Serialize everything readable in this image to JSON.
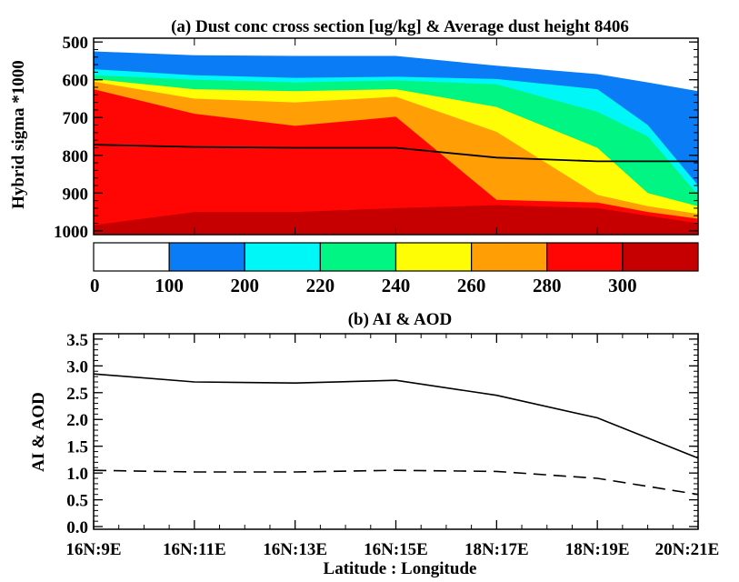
{
  "chart_data": [
    {
      "type": "area",
      "title": "(a) Dust conc cross section [ug/kg] & Average dust height 8406",
      "ylabel": "Hybrid sigma *1000",
      "xlabel": "",
      "y_ticks": [
        "500",
        "600",
        "700",
        "800",
        "900",
        "1000"
      ],
      "ylim": [
        1010,
        490
      ],
      "y_inverted": true,
      "x": [
        0,
        1,
        2,
        3,
        4,
        5,
        6
      ],
      "xlim": [
        0,
        6
      ],
      "colorbar": {
        "levels": [
          0,
          100,
          200,
          220,
          240,
          260,
          280,
          300
        ],
        "tick_labels": [
          "0",
          "100",
          "200",
          "220",
          "240",
          "260",
          "280",
          "300"
        ],
        "colors": [
          "#ffffff",
          "#0a7cf6",
          "#00f7f7",
          "#00f582",
          "#fffd05",
          "#ff9e05",
          "#ff0605",
          "#c60000"
        ]
      },
      "bands": [
        {
          "level": 100,
          "x": [
            0,
            1,
            2,
            3,
            4,
            5,
            5.5,
            6
          ],
          "bottom": [
            1010,
            1010,
            1010,
            1010,
            1010,
            1010,
            1010,
            1010
          ],
          "top": [
            525,
            535,
            537,
            537,
            563,
            585,
            607,
            630
          ]
        },
        {
          "level": 200,
          "x": [
            0,
            1,
            2,
            3,
            4,
            5,
            5.5,
            6
          ],
          "bottom": [
            1010,
            1010,
            1010,
            1010,
            1010,
            1010,
            1010,
            1010
          ],
          "top": [
            572,
            588,
            595,
            592,
            598,
            625,
            720,
            880
          ]
        },
        {
          "level": 220,
          "x": [
            0,
            1,
            2,
            3,
            4,
            5,
            5.5,
            6
          ],
          "bottom": [
            1010,
            1010,
            1010,
            1010,
            1010,
            1010,
            1010,
            1010
          ],
          "top": [
            588,
            600,
            607,
            602,
            612,
            685,
            750,
            905
          ]
        },
        {
          "level": 240,
          "x": [
            0,
            1,
            2,
            3,
            4,
            5,
            5.5,
            6
          ],
          "bottom": [
            1010,
            1010,
            1010,
            1010,
            1010,
            1010,
            1010,
            1010
          ],
          "top": [
            598,
            625,
            630,
            625,
            672,
            780,
            900,
            935
          ]
        },
        {
          "level": 260,
          "x": [
            0,
            1,
            2,
            3,
            4,
            5,
            5.5,
            6
          ],
          "bottom": [
            1010,
            1010,
            1010,
            1010,
            1010,
            1010,
            1010,
            1010
          ],
          "top": [
            605,
            650,
            660,
            645,
            738,
            905,
            935,
            955
          ]
        },
        {
          "level": 280,
          "x": [
            0,
            1,
            2,
            3,
            4,
            5,
            5.5,
            6
          ],
          "bottom": [
            1010,
            1010,
            1010,
            1010,
            1010,
            1010,
            1010,
            1010
          ],
          "top": [
            625,
            690,
            722,
            698,
            918,
            925,
            950,
            968
          ]
        },
        {
          "level": 300,
          "x": [
            0,
            1,
            2,
            3,
            4,
            5,
            5.5,
            6
          ],
          "bottom": [
            1010,
            1010,
            1010,
            1010,
            1010,
            1010,
            1010,
            1010
          ],
          "top": [
            985,
            950,
            950,
            940,
            932,
            940,
            960,
            980
          ]
        }
      ],
      "series": [
        {
          "style": "solid",
          "x": [
            0,
            1,
            2,
            3,
            4,
            5,
            6
          ],
          "values": [
            772,
            778,
            780,
            780,
            806,
            816,
            816
          ]
        }
      ]
    },
    {
      "type": "line",
      "title": "(b) AI & AOD",
      "ylabel": "AI & AOD",
      "xlabel": "Latitude : Longitude",
      "categories": [
        "16N:9E",
        "16N:11E",
        "16N:13E",
        "16N:15E",
        "18N:17E",
        "18N:19E",
        "20N:21E"
      ],
      "y_ticks": [
        "0.0",
        "0.5",
        "1.0",
        "1.5",
        "2.0",
        "2.5",
        "3.0",
        "3.5"
      ],
      "ylim": [
        -0.05,
        3.6
      ],
      "series": [
        {
          "style": "solid",
          "values": [
            2.85,
            2.7,
            2.68,
            2.73,
            2.45,
            2.03,
            1.28
          ]
        },
        {
          "style": "dashed",
          "values": [
            1.05,
            1.02,
            1.02,
            1.05,
            1.03,
            0.9,
            0.6
          ]
        }
      ]
    }
  ]
}
